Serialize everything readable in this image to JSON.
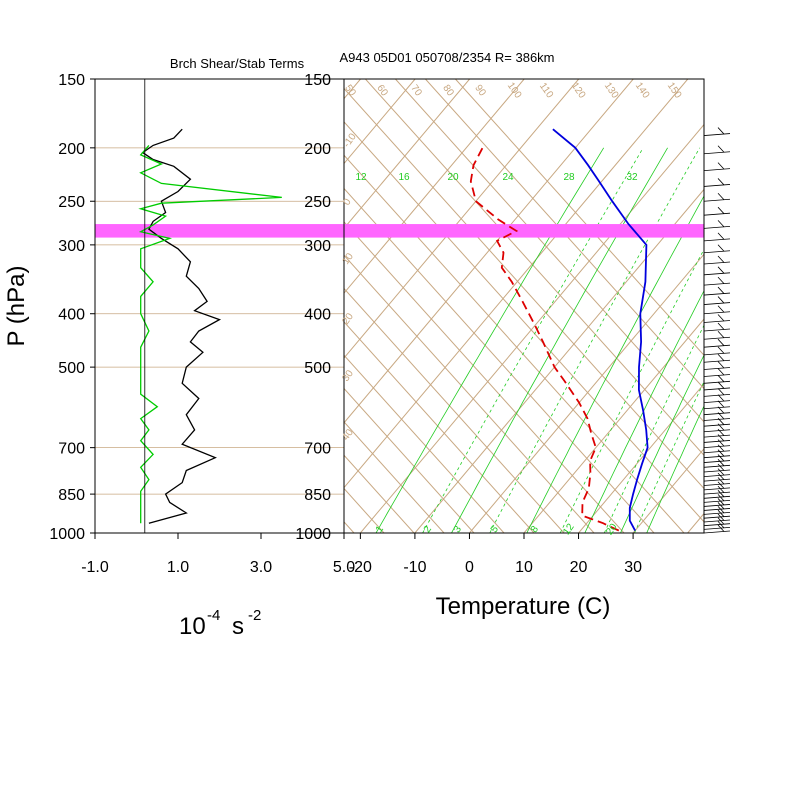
{
  "title_left": "Brch Shear/Stab Terms",
  "title_right": "A943 05D01 050708/2354 R= 386km",
  "ylabel": "P (hPa)",
  "xlabel_right": "Temperature (C)",
  "xlabel_left_base": "10",
  "xlabel_left_exp": "-4",
  "xlabel_left_unit": "s",
  "xlabel_left_unit_exp": "-2",
  "colors": {
    "temperature": "#0000dd",
    "dewpoint": "#dd0000",
    "mixing_ratio": "#22cc22",
    "isotherm": "#c8a882",
    "shear_term": "#000000",
    "stability_term": "#00cc00",
    "highlight": "#ff66ff"
  },
  "chart_data": [
    {
      "type": "line",
      "name": "branch-shear-stability-terms",
      "title": "Brch Shear/Stab Terms",
      "xlim": [
        -1.0,
        5.0
      ],
      "xticks": [
        "-1.0",
        "1.0",
        "3.0",
        "5.0"
      ],
      "y_scale": "log",
      "y_inverted": true,
      "ylim": [
        150,
        1000
      ],
      "yticks": [
        "150",
        "200",
        "250",
        "300",
        "400",
        "500",
        "700",
        "850",
        "1000"
      ],
      "series": [
        {
          "color": "#000000",
          "points": [
            [
              1.1,
              185
            ],
            [
              0.9,
              192
            ],
            [
              0.4,
              198
            ],
            [
              0.15,
              204
            ],
            [
              0.4,
              210
            ],
            [
              0.9,
              216
            ],
            [
              1.3,
              228
            ],
            [
              1.0,
              240
            ],
            [
              0.6,
              250
            ],
            [
              0.7,
              262
            ],
            [
              0.4,
              272
            ],
            [
              0.3,
              281
            ],
            [
              0.6,
              292
            ],
            [
              1.0,
              305
            ],
            [
              1.3,
              322
            ],
            [
              1.2,
              342
            ],
            [
              1.5,
              360
            ],
            [
              1.7,
              380
            ],
            [
              1.4,
              395
            ],
            [
              2.0,
              410
            ],
            [
              1.5,
              430
            ],
            [
              1.3,
              450
            ],
            [
              1.6,
              470
            ],
            [
              1.2,
              500
            ],
            [
              1.1,
              535
            ],
            [
              1.5,
              570
            ],
            [
              1.2,
              610
            ],
            [
              1.4,
              650
            ],
            [
              1.1,
              690
            ],
            [
              1.9,
              730
            ],
            [
              1.2,
              770
            ],
            [
              1.1,
              810
            ],
            [
              0.7,
              850
            ],
            [
              0.8,
              880
            ],
            [
              1.2,
              920
            ],
            [
              0.3,
              960
            ]
          ]
        },
        {
          "color": "#00cc00",
          "points": [
            [
              0.3,
              198
            ],
            [
              0.1,
              206
            ],
            [
              0.6,
              214
            ],
            [
              0.1,
              222
            ],
            [
              0.6,
              232
            ],
            [
              3.5,
              246
            ],
            [
              0.6,
              252
            ],
            [
              0.1,
              258
            ],
            [
              0.7,
              266
            ],
            [
              0.4,
              276
            ],
            [
              0.1,
              284
            ],
            [
              0.8,
              292
            ],
            [
              0.1,
              305
            ],
            [
              0.1,
              330
            ],
            [
              0.4,
              350
            ],
            [
              0.1,
              372
            ],
            [
              0.1,
              400
            ],
            [
              0.3,
              430
            ],
            [
              0.1,
              460
            ],
            [
              0.1,
              500
            ],
            [
              0.1,
              535
            ],
            [
              0.1,
              560
            ],
            [
              0.5,
              590
            ],
            [
              0.1,
              620
            ],
            [
              0.3,
              650
            ],
            [
              0.1,
              680
            ],
            [
              0.4,
              720
            ],
            [
              0.1,
              760
            ],
            [
              0.3,
              800
            ],
            [
              0.1,
              840
            ],
            [
              0.1,
              880
            ],
            [
              0.1,
              920
            ],
            [
              0.1,
              960
            ]
          ]
        }
      ],
      "highlight_band_hpa": [
        275,
        291
      ]
    },
    {
      "type": "line",
      "name": "skew-t-sounding",
      "title": "A943 05D01 050708/2354 R= 386km",
      "xlabel": "Temperature (C)",
      "ylabel": "P (hPa)",
      "x_at_1000hPa_lim": [
        -23,
        43
      ],
      "xticks": [
        "-20",
        "-10",
        "0",
        "10",
        "20",
        "30"
      ],
      "skew_C_per_decade": 85,
      "y_scale": "log",
      "y_inverted": true,
      "ylim": [
        150,
        1000
      ],
      "yticks": [
        "150",
        "200",
        "250",
        "300",
        "400",
        "500",
        "700",
        "850",
        "1000"
      ],
      "isotherm_labels": [
        "-10",
        "0",
        "10",
        "20",
        "30",
        "40",
        "50",
        "60",
        "70",
        "80",
        "90",
        "100",
        "110",
        "120",
        "130",
        "140",
        "150"
      ],
      "mixing_ratio_labels": [
        "1",
        "2",
        "3",
        "5",
        "8",
        "12",
        "20",
        "12",
        "16",
        "20",
        "24",
        "28",
        "32"
      ],
      "mixing_ratio_lines_gkg": [
        1,
        2,
        3,
        5,
        8,
        12,
        16,
        20,
        24,
        28,
        32
      ],
      "highlight_band_hpa": [
        275,
        291
      ],
      "series": [
        {
          "color": "#0000dd",
          "dash": "solid",
          "points": [
            [
              30.0,
              990
            ],
            [
              27.5,
              950
            ],
            [
              25.5,
              900
            ],
            [
              24.0,
              850
            ],
            [
              22.5,
              800
            ],
            [
              21.0,
              750
            ],
            [
              19.5,
              700
            ],
            [
              16.5,
              650
            ],
            [
              13.0,
              600
            ],
            [
              9.0,
              550
            ],
            [
              5.5,
              500
            ],
            [
              2.0,
              450
            ],
            [
              -2.5,
              400
            ],
            [
              -6.5,
              350
            ],
            [
              -12.0,
              300
            ],
            [
              -18.5,
              275
            ],
            [
              -25.0,
              250
            ],
            [
              -30.5,
              230
            ],
            [
              -35.0,
              215
            ],
            [
              -40.0,
              200
            ],
            [
              -47.0,
              185
            ]
          ]
        },
        {
          "color": "#dd0000",
          "dash": "dashed",
          "points": [
            [
              27.0,
              990
            ],
            [
              23.0,
              960
            ],
            [
              18.0,
              930
            ],
            [
              16.0,
              880
            ],
            [
              15.0,
              830
            ],
            [
              13.0,
              780
            ],
            [
              11.0,
              740
            ],
            [
              10.0,
              700
            ],
            [
              7.0,
              660
            ],
            [
              4.0,
              620
            ],
            [
              0.0,
              580
            ],
            [
              -6.0,
              530
            ],
            [
              -10.0,
              500
            ],
            [
              -16.0,
              450
            ],
            [
              -20.0,
              420
            ],
            [
              -26.0,
              380
            ],
            [
              -31.0,
              350
            ],
            [
              -35.0,
              330
            ],
            [
              -37.0,
              310
            ],
            [
              -40.0,
              295
            ],
            [
              -38.0,
              283
            ],
            [
              -43.0,
              270
            ],
            [
              -50.0,
              250
            ],
            [
              -54.0,
              230
            ],
            [
              -56.0,
              215
            ],
            [
              -57.0,
              200
            ]
          ]
        }
      ],
      "wind_barbs_note": "wind barbs along right edge"
    }
  ]
}
